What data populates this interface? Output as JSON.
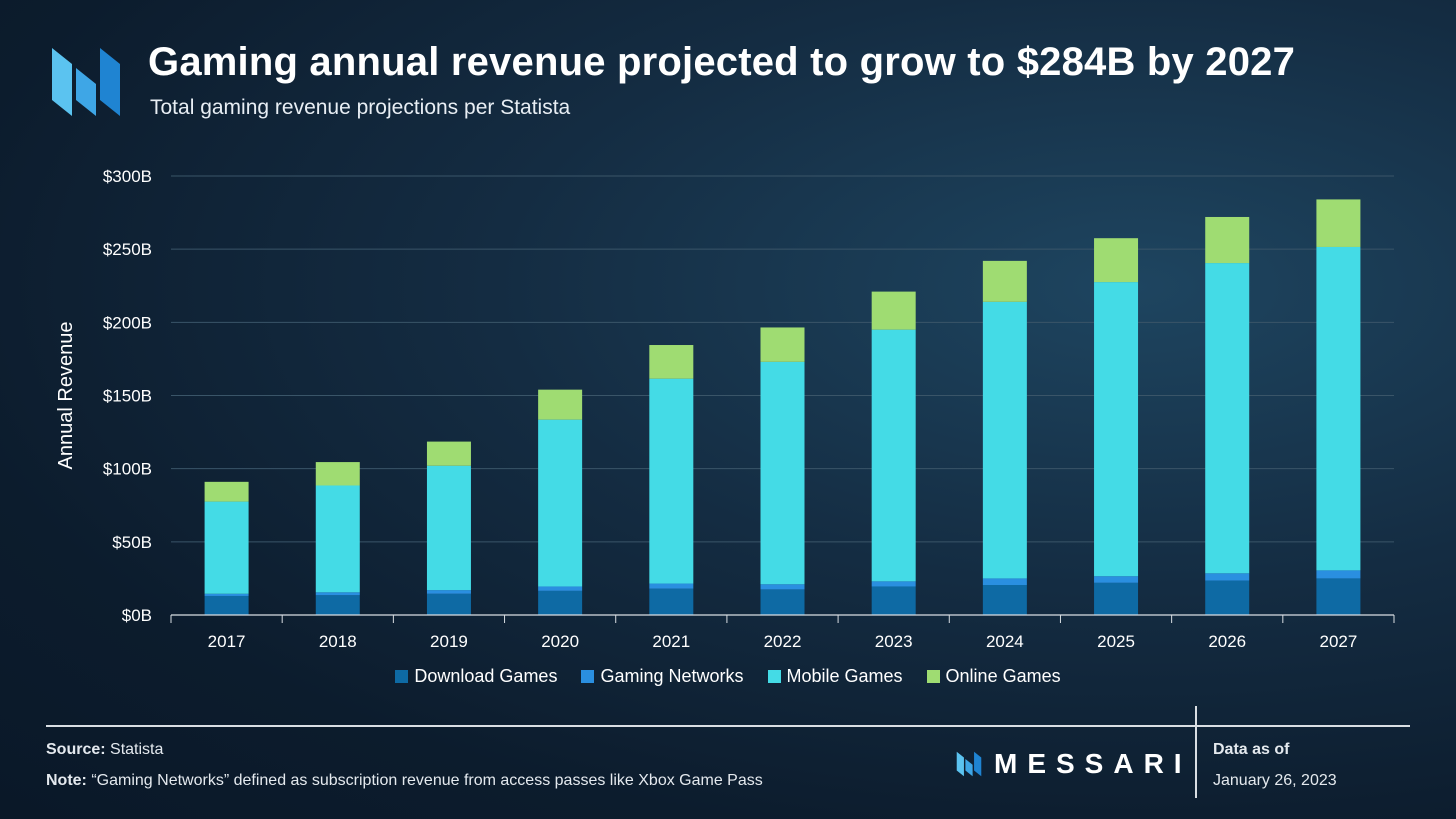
{
  "header": {
    "title": "Gaming annual revenue projected to grow to $284B by 2027",
    "subtitle": "Total gaming revenue projections per Statista"
  },
  "colors": {
    "download": "#0e6aa4",
    "networks": "#2a8fe0",
    "mobile": "#44dbe6",
    "online": "#9fdc72",
    "grid": "#3a5568"
  },
  "chart_data": {
    "type": "bar",
    "stacked": true,
    "categories": [
      "2017",
      "2018",
      "2019",
      "2020",
      "2021",
      "2022",
      "2023",
      "2024",
      "2025",
      "2026",
      "2027"
    ],
    "series": [
      {
        "name": "Download Games",
        "values": [
          13,
          13.5,
          14.5,
          16.5,
          18,
          17.5,
          19.5,
          20.5,
          22,
          23.5,
          25
        ]
      },
      {
        "name": "Gaming Networks",
        "values": [
          1.5,
          2,
          2.5,
          3,
          3.5,
          3.5,
          3.5,
          4.5,
          4.5,
          5,
          5.5
        ]
      },
      {
        "name": "Mobile Games",
        "values": [
          63,
          73,
          85,
          114,
          140,
          152,
          172,
          189,
          201,
          212,
          221
        ]
      },
      {
        "name": "Online Games",
        "values": [
          13.5,
          16,
          16.5,
          20.5,
          23,
          23.5,
          26,
          28,
          30,
          31.5,
          32.5
        ]
      }
    ],
    "ylabel": "Annual Revenue",
    "ylim": [
      0,
      300
    ],
    "yticks": [
      0,
      50,
      100,
      150,
      200,
      250,
      300
    ],
    "ytick_labels": [
      "$0B",
      "$50B",
      "$100B",
      "$150B",
      "$200B",
      "$250B",
      "$300B"
    ],
    "grid": true,
    "legend_position": "bottom-center"
  },
  "legend": {
    "items": [
      "Download Games",
      "Gaming Networks",
      "Mobile Games",
      "Online Games"
    ]
  },
  "footer": {
    "source_label": "Source:",
    "source_value": "Statista",
    "note_label": "Note:",
    "note_value": "“Gaming Networks” defined as subscription revenue from access passes like Xbox Game Pass",
    "brand": "MESSARI",
    "data_as_of_label": "Data as of",
    "data_as_of_date": "January 26, 2023"
  }
}
